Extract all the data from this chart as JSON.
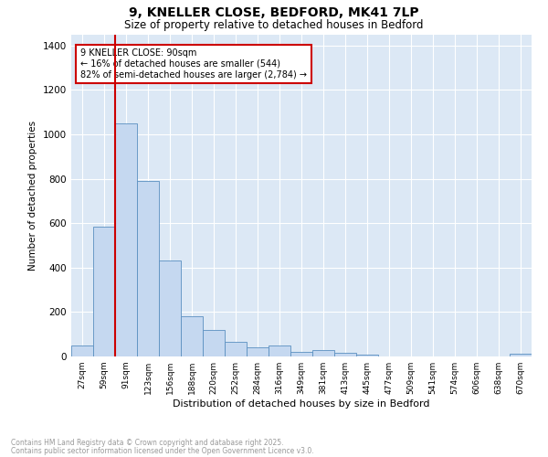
{
  "title1": "9, KNELLER CLOSE, BEDFORD, MK41 7LP",
  "title2": "Size of property relative to detached houses in Bedford",
  "xlabel": "Distribution of detached houses by size in Bedford",
  "ylabel": "Number of detached properties",
  "bar_color": "#c5d8f0",
  "bar_edge_color": "#5a8fc0",
  "bg_color": "#dce8f5",
  "grid_color": "#ffffff",
  "categories": [
    "27sqm",
    "59sqm",
    "91sqm",
    "123sqm",
    "156sqm",
    "188sqm",
    "220sqm",
    "252sqm",
    "284sqm",
    "316sqm",
    "349sqm",
    "381sqm",
    "413sqm",
    "445sqm",
    "477sqm",
    "509sqm",
    "541sqm",
    "574sqm",
    "606sqm",
    "638sqm",
    "670sqm"
  ],
  "values": [
    48,
    585,
    1048,
    790,
    430,
    180,
    120,
    65,
    42,
    48,
    22,
    28,
    18,
    10,
    0,
    0,
    0,
    0,
    0,
    0,
    12
  ],
  "vline_x": 2,
  "vline_color": "#cc0000",
  "annotation_text": "9 KNELLER CLOSE: 90sqm\n← 16% of detached houses are smaller (544)\n82% of semi-detached houses are larger (2,784) →",
  "annotation_box_color": "#ffffff",
  "annotation_box_edge": "#cc0000",
  "ylim": [
    0,
    1450
  ],
  "yticks": [
    0,
    200,
    400,
    600,
    800,
    1000,
    1200,
    1400
  ],
  "footnote1": "Contains HM Land Registry data © Crown copyright and database right 2025.",
  "footnote2": "Contains public sector information licensed under the Open Government Licence v3.0.",
  "footnote_color": "#999999"
}
